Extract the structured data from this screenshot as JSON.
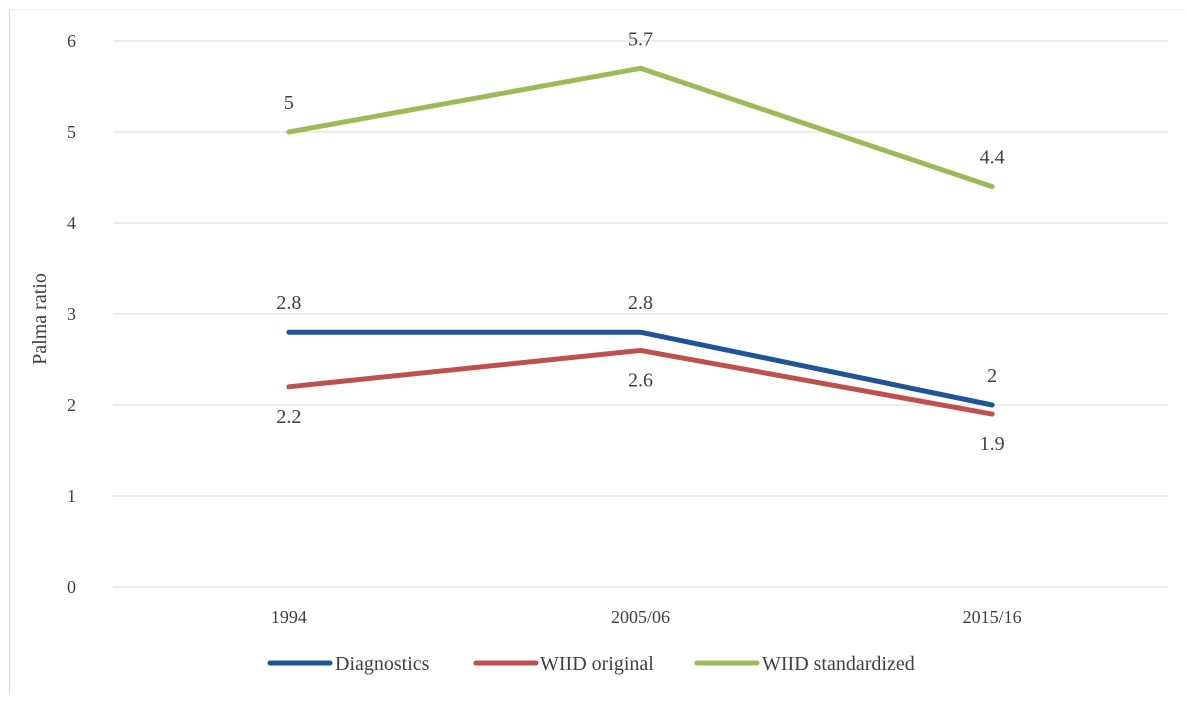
{
  "chart_data": {
    "type": "line",
    "categories": [
      "1994",
      "2005/06",
      "2015/16"
    ],
    "ylabel": "Palma ratio",
    "xlabel": "",
    "ylim": [
      0,
      6
    ],
    "yticks": [
      0,
      1,
      2,
      3,
      4,
      5,
      6
    ],
    "grid": true,
    "legend_position": "bottom",
    "series": [
      {
        "name": "Diagnostics",
        "values": [
          2.8,
          2.8,
          2.0
        ],
        "labels": [
          "2.8",
          "2.8",
          "2"
        ],
        "color": "#1f5597",
        "label_pos": [
          "above",
          "above",
          "above"
        ]
      },
      {
        "name": "WIID original",
        "values": [
          2.2,
          2.6,
          1.9
        ],
        "labels": [
          "2.2",
          "2.6",
          "1.9"
        ],
        "color": "#c0504d",
        "label_pos": [
          "below",
          "below",
          "below"
        ]
      },
      {
        "name": "WIID standardized",
        "values": [
          5.0,
          5.7,
          4.4
        ],
        "labels": [
          "5",
          "5.7",
          "4.4"
        ],
        "color": "#9bbb59",
        "label_pos": [
          "above",
          "above",
          "above"
        ]
      }
    ]
  }
}
